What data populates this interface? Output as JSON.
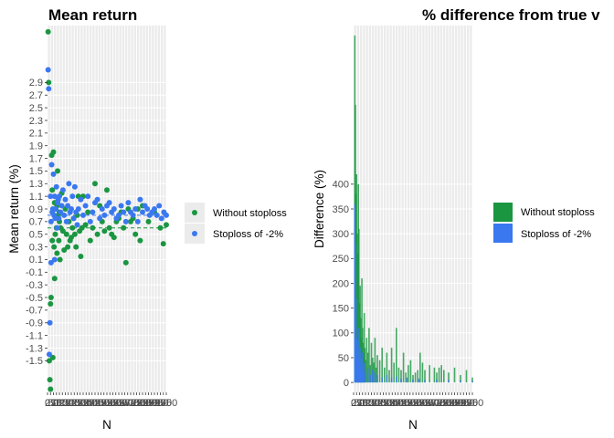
{
  "colors": {
    "without": "#1a9641",
    "stoploss": "#3a78f0",
    "panel": "#ebebeb",
    "grid_major": "#ffffff",
    "grid_minor": "#f4f4f4"
  },
  "chart_data": [
    {
      "type": "scatter",
      "title": "Mean return",
      "xlabel": "N",
      "ylabel": "Mean return (%)",
      "xlim": [
        0,
        1000
      ],
      "ylim": [
        -2.0,
        3.8
      ],
      "x_ticks": [
        "0",
        "25",
        "50",
        "75",
        "100",
        "125",
        "150",
        "175",
        "200",
        "225",
        "250",
        "275",
        "300",
        "325",
        "350",
        "375",
        "400",
        "425",
        "450",
        "475",
        "500",
        "525",
        "550",
        "575",
        "600",
        "625",
        "650",
        "675",
        "700",
        "725",
        "750",
        "775",
        "800",
        "825",
        "850",
        "875",
        "900",
        "925",
        "950",
        "975",
        "1000"
      ],
      "y_ticks": [
        "-1.5",
        "-1.3",
        "-1.1",
        "-0.9",
        "-0.7",
        "-0.5",
        "-0.3",
        "-0.1",
        "0.1",
        "0.3",
        "0.5",
        "0.7",
        "0.9",
        "1.1",
        "1.3",
        "1.5",
        "1.7",
        "1.9",
        "2.1",
        "2.3",
        "2.5",
        "2.7",
        "2.9"
      ],
      "hlines": [
        {
          "series": "Without stoploss",
          "y": 0.6
        },
        {
          "series": "Stoploss of -2%",
          "y": 0.8
        }
      ],
      "series": [
        {
          "name": "Without stoploss",
          "points": [
            [
              5,
              3.7
            ],
            [
              10,
              2.9
            ],
            [
              15,
              -1.5
            ],
            [
              20,
              -1.8
            ],
            [
              25,
              -0.6
            ],
            [
              30,
              -0.5
            ],
            [
              35,
              1.75
            ],
            [
              40,
              1.2
            ],
            [
              45,
              -1.45
            ],
            [
              50,
              1.8
            ],
            [
              55,
              0.3
            ],
            [
              60,
              1.0
            ],
            [
              65,
              0.5
            ],
            [
              70,
              0.9
            ],
            [
              75,
              0.6
            ],
            [
              80,
              0.2
            ],
            [
              85,
              1.5
            ],
            [
              90,
              0.8
            ],
            [
              95,
              0.4
            ],
            [
              100,
              0.7
            ],
            [
              105,
              0.1
            ],
            [
              110,
              0.6
            ],
            [
              120,
              1.15
            ],
            [
              130,
              0.55
            ],
            [
              140,
              0.25
            ],
            [
              150,
              0.9
            ],
            [
              160,
              0.5
            ],
            [
              170,
              0.3
            ],
            [
              180,
              0.7
            ],
            [
              190,
              0.4
            ],
            [
              200,
              0.45
            ],
            [
              210,
              0.6
            ],
            [
              220,
              0.75
            ],
            [
              230,
              0.5
            ],
            [
              240,
              0.3
            ],
            [
              250,
              0.8
            ],
            [
              260,
              1.1
            ],
            [
              270,
              0.55
            ],
            [
              280,
              0.15
            ],
            [
              290,
              0.6
            ],
            [
              300,
              1.1
            ],
            [
              320,
              0.65
            ],
            [
              340,
              0.85
            ],
            [
              360,
              0.4
            ],
            [
              380,
              0.6
            ],
            [
              400,
              1.3
            ],
            [
              420,
              0.5
            ],
            [
              440,
              0.95
            ],
            [
              460,
              0.7
            ],
            [
              480,
              0.55
            ],
            [
              500,
              1.2
            ],
            [
              520,
              0.6
            ],
            [
              540,
              0.5
            ],
            [
              560,
              0.45
            ],
            [
              580,
              0.7
            ],
            [
              600,
              0.75
            ],
            [
              620,
              0.85
            ],
            [
              640,
              0.6
            ],
            [
              660,
              0.05
            ],
            [
              680,
              0.9
            ],
            [
              700,
              0.7
            ],
            [
              720,
              0.75
            ],
            [
              740,
              0.5
            ],
            [
              760,
              0.9
            ],
            [
              780,
              0.4
            ],
            [
              800,
              0.95
            ],
            [
              850,
              0.7
            ],
            [
              900,
              0.85
            ],
            [
              950,
              0.6
            ],
            [
              975,
              0.35
            ],
            [
              1000,
              0.65
            ],
            [
              40,
              0.4
            ],
            [
              60,
              -0.2
            ],
            [
              80,
              0.95
            ],
            [
              100,
              0.85
            ],
            [
              25,
              -1.95
            ]
          ]
        },
        {
          "name": "Stoploss of -2%",
          "points": [
            [
              5,
              3.1
            ],
            [
              10,
              2.8
            ],
            [
              15,
              -1.4
            ],
            [
              20,
              -0.9
            ],
            [
              25,
              1.1
            ],
            [
              30,
              0.7
            ],
            [
              35,
              1.6
            ],
            [
              40,
              0.85
            ],
            [
              45,
              0.9
            ],
            [
              50,
              1.45
            ],
            [
              55,
              0.8
            ],
            [
              60,
              1.1
            ],
            [
              65,
              0.75
            ],
            [
              70,
              0.9
            ],
            [
              75,
              1.25
            ],
            [
              80,
              0.6
            ],
            [
              85,
              1.0
            ],
            [
              90,
              1.05
            ],
            [
              95,
              0.75
            ],
            [
              100,
              1.1
            ],
            [
              110,
              0.85
            ],
            [
              120,
              0.95
            ],
            [
              130,
              1.2
            ],
            [
              140,
              0.8
            ],
            [
              150,
              1.05
            ],
            [
              160,
              0.7
            ],
            [
              170,
              0.95
            ],
            [
              180,
              1.3
            ],
            [
              190,
              0.85
            ],
            [
              200,
              0.9
            ],
            [
              210,
              1.1
            ],
            [
              220,
              0.75
            ],
            [
              230,
              1.25
            ],
            [
              240,
              0.85
            ],
            [
              250,
              0.65
            ],
            [
              260,
              0.9
            ],
            [
              280,
              1.05
            ],
            [
              300,
              0.8
            ],
            [
              320,
              0.95
            ],
            [
              340,
              1.1
            ],
            [
              360,
              0.7
            ],
            [
              380,
              0.85
            ],
            [
              400,
              1.0
            ],
            [
              420,
              1.05
            ],
            [
              440,
              0.75
            ],
            [
              460,
              0.9
            ],
            [
              480,
              0.8
            ],
            [
              500,
              0.95
            ],
            [
              520,
              1.0
            ],
            [
              540,
              0.85
            ],
            [
              560,
              0.9
            ],
            [
              580,
              0.75
            ],
            [
              600,
              0.8
            ],
            [
              620,
              0.95
            ],
            [
              640,
              0.85
            ],
            [
              660,
              0.7
            ],
            [
              680,
              1.0
            ],
            [
              700,
              0.85
            ],
            [
              720,
              0.8
            ],
            [
              740,
              0.9
            ],
            [
              760,
              0.7
            ],
            [
              780,
              1.05
            ],
            [
              800,
              0.85
            ],
            [
              820,
              0.95
            ],
            [
              840,
              0.9
            ],
            [
              860,
              0.8
            ],
            [
              880,
              0.85
            ],
            [
              900,
              0.9
            ],
            [
              920,
              0.8
            ],
            [
              940,
              0.95
            ],
            [
              960,
              0.75
            ],
            [
              980,
              0.85
            ],
            [
              1000,
              0.8
            ],
            [
              30,
              0.05
            ],
            [
              60,
              0.1
            ]
          ]
        }
      ],
      "legend": {
        "position": "right",
        "entries": [
          "Without stoploss",
          "Stoploss of -2%"
        ]
      },
      "grid": true
    },
    {
      "type": "bar",
      "title": "% difference from true v",
      "xlabel": "N",
      "ylabel": "Difference (%)",
      "xlim": [
        0,
        1000
      ],
      "ylim": [
        -20,
        720
      ],
      "x_ticks": [
        "0",
        "25",
        "50",
        "75",
        "100",
        "125",
        "150",
        "175",
        "200",
        "225",
        "250",
        "275",
        "300",
        "325",
        "350",
        "375",
        "400",
        "425",
        "450",
        "475",
        "500",
        "525",
        "550",
        "575",
        "600",
        "625",
        "650",
        "675",
        "700",
        "725",
        "750",
        "775",
        "800",
        "825",
        "850",
        "875",
        "900",
        "925",
        "950",
        "975",
        "1000"
      ],
      "y_ticks": [
        "0",
        "50",
        "100",
        "150",
        "200",
        "250",
        "300",
        "350",
        "400"
      ],
      "series": [
        {
          "name": "Without stoploss",
          "points": [
            [
              10,
              700
            ],
            [
              15,
              560
            ],
            [
              20,
              380
            ],
            [
              25,
              420
            ],
            [
              30,
              300
            ],
            [
              35,
              260
            ],
            [
              40,
              400
            ],
            [
              45,
              310
            ],
            [
              50,
              160
            ],
            [
              55,
              195
            ],
            [
              60,
              130
            ],
            [
              65,
              90
            ],
            [
              70,
              210
            ],
            [
              75,
              110
            ],
            [
              80,
              80
            ],
            [
              85,
              60
            ],
            [
              90,
              140
            ],
            [
              95,
              70
            ],
            [
              100,
              45
            ],
            [
              110,
              90
            ],
            [
              120,
              60
            ],
            [
              130,
              110
            ],
            [
              140,
              35
            ],
            [
              150,
              80
            ],
            [
              160,
              50
            ],
            [
              170,
              40
            ],
            [
              180,
              90
            ],
            [
              190,
              30
            ],
            [
              200,
              55
            ],
            [
              220,
              45
            ],
            [
              240,
              70
            ],
            [
              260,
              30
            ],
            [
              280,
              60
            ],
            [
              300,
              25
            ],
            [
              320,
              70
            ],
            [
              340,
              40
            ],
            [
              360,
              110
            ],
            [
              380,
              30
            ],
            [
              400,
              25
            ],
            [
              420,
              60
            ],
            [
              440,
              20
            ],
            [
              460,
              35
            ],
            [
              480,
              45
            ],
            [
              500,
              15
            ],
            [
              520,
              20
            ],
            [
              540,
              25
            ],
            [
              560,
              60
            ],
            [
              580,
              40
            ],
            [
              600,
              25
            ],
            [
              640,
              35
            ],
            [
              680,
              30
            ],
            [
              700,
              20
            ],
            [
              720,
              30
            ],
            [
              740,
              35
            ],
            [
              760,
              25
            ],
            [
              800,
              20
            ],
            [
              850,
              30
            ],
            [
              900,
              15
            ],
            [
              950,
              25
            ],
            [
              1000,
              10
            ]
          ]
        },
        {
          "name": "Stoploss of -2%",
          "points": [
            [
              10,
              360
            ],
            [
              15,
              280
            ],
            [
              20,
              170
            ],
            [
              25,
              90
            ],
            [
              30,
              60
            ],
            [
              35,
              80
            ],
            [
              40,
              50
            ],
            [
              45,
              110
            ],
            [
              50,
              40
            ],
            [
              55,
              70
            ],
            [
              60,
              30
            ],
            [
              65,
              50
            ],
            [
              70,
              35
            ],
            [
              75,
              60
            ],
            [
              80,
              25
            ],
            [
              90,
              40
            ],
            [
              100,
              20
            ],
            [
              120,
              30
            ],
            [
              140,
              15
            ],
            [
              160,
              25
            ],
            [
              180,
              20
            ],
            [
              200,
              15
            ],
            [
              240,
              10
            ],
            [
              280,
              15
            ],
            [
              320,
              10
            ],
            [
              360,
              12
            ],
            [
              400,
              8
            ],
            [
              450,
              10
            ],
            [
              500,
              6
            ],
            [
              550,
              8
            ],
            [
              600,
              5
            ],
            [
              700,
              6
            ],
            [
              800,
              5
            ],
            [
              900,
              4
            ],
            [
              1000,
              3
            ]
          ]
        }
      ],
      "legend": {
        "position": "right",
        "entries": [
          "Without stoploss",
          "Stoploss of -2%"
        ]
      },
      "grid": true
    }
  ]
}
